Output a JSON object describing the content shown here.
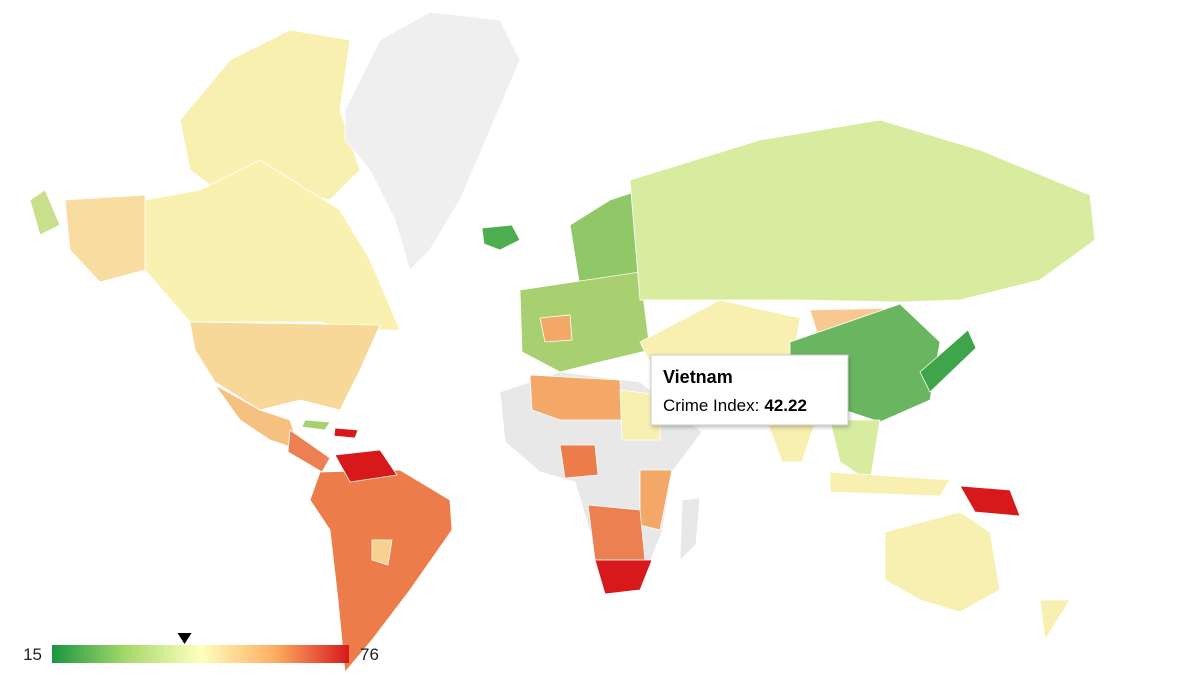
{
  "tooltip": {
    "title": "Vietnam",
    "label": "Crime Index:",
    "value": 42.22
  },
  "legend": {
    "min": 15,
    "max": 76
  }
}
